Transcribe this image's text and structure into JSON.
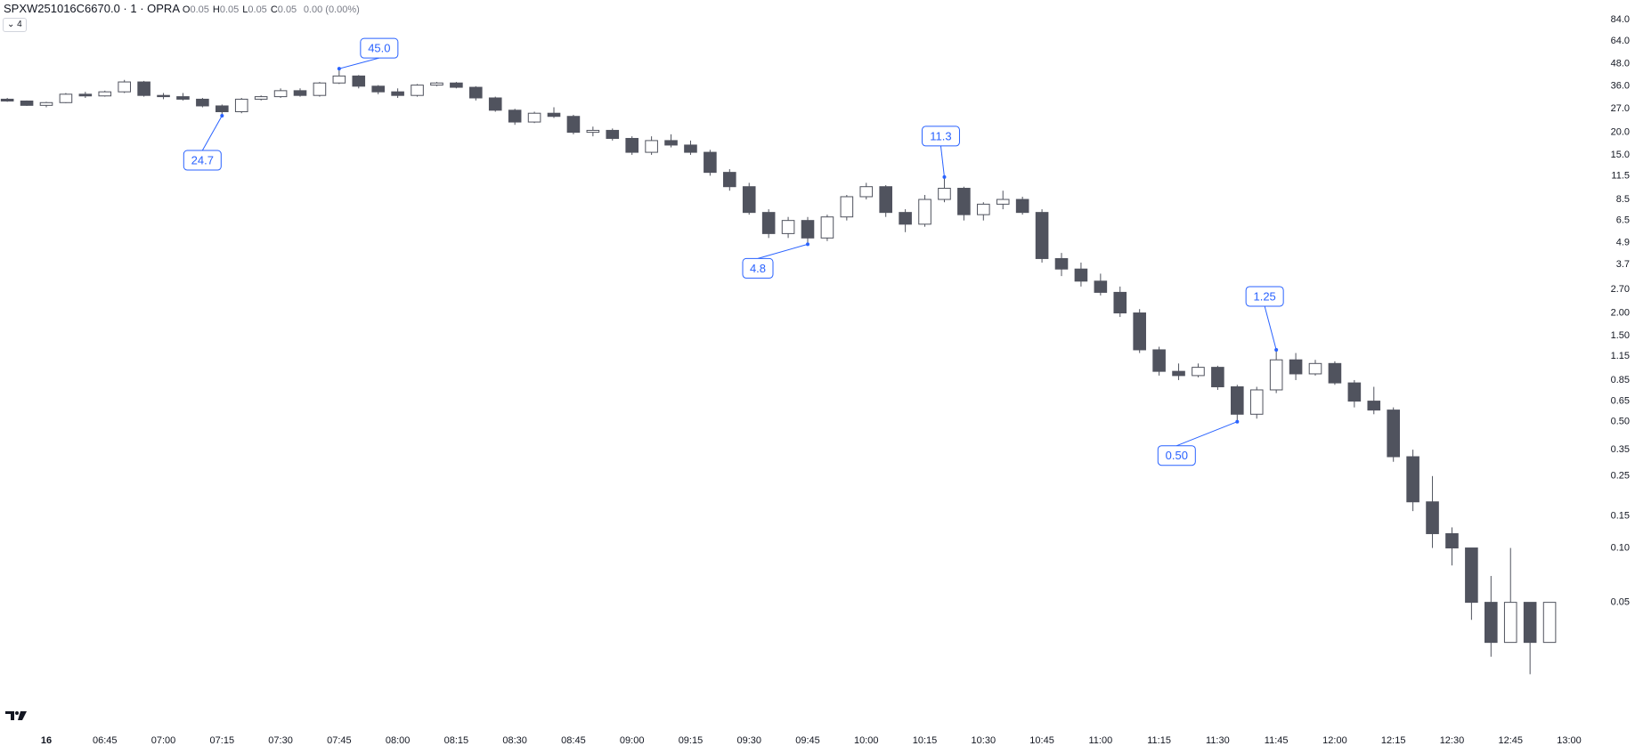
{
  "header": {
    "symbol": "SPXW251016C6670.0 · 1 · OPRA",
    "ohlc": [
      {
        "key": "O",
        "value": 0.05
      },
      {
        "key": "H",
        "value": 0.05
      },
      {
        "key": "L",
        "value": 0.05
      },
      {
        "key": "C",
        "value": 0.05
      }
    ],
    "change": "0.00 (0.00%)",
    "badge": "4"
  },
  "chart_data": {
    "type": "candlestick",
    "log_scale": true,
    "up_color": "#ffffff",
    "down_color": "#50535e",
    "wick_color": "#50535e",
    "annotation_color": "#2962ff",
    "x": [
      "06:20",
      "06:25",
      "06:30",
      "06:35",
      "06:40",
      "06:45",
      "06:50",
      "06:55",
      "07:00",
      "07:05",
      "07:10",
      "07:15",
      "07:20",
      "07:25",
      "07:30",
      "07:35",
      "07:40",
      "07:45",
      "07:50",
      "07:55",
      "08:00",
      "08:05",
      "08:10",
      "08:15",
      "08:20",
      "08:25",
      "08:30",
      "08:35",
      "08:40",
      "08:45",
      "08:50",
      "08:55",
      "09:00",
      "09:05",
      "09:10",
      "09:15",
      "09:20",
      "09:25",
      "09:30",
      "09:35",
      "09:40",
      "09:45",
      "09:50",
      "09:55",
      "10:00",
      "10:05",
      "10:10",
      "10:15",
      "10:20",
      "10:25",
      "10:30",
      "10:35",
      "10:40",
      "10:45",
      "10:50",
      "10:55",
      "11:00",
      "11:05",
      "11:10",
      "11:15",
      "11:20",
      "11:25",
      "11:30",
      "11:35",
      "11:40",
      "11:45",
      "11:50",
      "11:55",
      "12:00",
      "12:05",
      "12:10",
      "12:15",
      "12:20",
      "12:25",
      "12:30",
      "12:35",
      "12:40",
      "12:45",
      "12:50",
      "12:55"
    ],
    "open": [
      30.5,
      29.8,
      28.2,
      29.2,
      32.5,
      31.8,
      33.5,
      38,
      32,
      31.5,
      30.5,
      28,
      26,
      30.5,
      31.5,
      34,
      32,
      37.5,
      41,
      36,
      33.5,
      32,
      36.5,
      37.5,
      35.5,
      31,
      26.5,
      22.8,
      25.5,
      24.5,
      20,
      20.5,
      18.5,
      15.5,
      18,
      17,
      15.5,
      12,
      10,
      7.2,
      5.5,
      6.5,
      5.2,
      6.8,
      8.8,
      10,
      7.2,
      6.2,
      8.5,
      9.8,
      7,
      8,
      8.5,
      7.2,
      4,
      3.5,
      3,
      2.6,
      2,
      1.25,
      0.95,
      0.9,
      1.0,
      0.78,
      0.55,
      0.75,
      1.1,
      0.92,
      1.05,
      0.82,
      0.65,
      0.58,
      0.32,
      0.18,
      0.12,
      0.1,
      0.05,
      0.03,
      0.05,
      0.03
    ],
    "high": [
      31,
      30,
      29.5,
      33,
      33.5,
      34,
      39,
      38.5,
      33,
      33,
      31,
      28.5,
      31,
      32,
      35,
      35,
      38,
      45,
      41.5,
      36.5,
      35,
      37,
      38,
      38,
      36,
      31.5,
      27,
      26,
      27.5,
      25,
      21.5,
      21,
      19,
      19,
      19.5,
      18,
      16,
      12.5,
      10.5,
      7.5,
      6.8,
      6.8,
      7,
      9,
      10.5,
      10.2,
      7.5,
      9,
      11.3,
      10,
      8.2,
      9.5,
      8.8,
      7.5,
      4.3,
      3.8,
      3.3,
      2.8,
      2.1,
      1.3,
      1.05,
      1.05,
      1.02,
      0.8,
      0.78,
      1.25,
      1.2,
      1.1,
      1.08,
      0.85,
      0.78,
      0.6,
      0.35,
      0.25,
      0.13,
      0.1,
      0.07,
      0.1,
      0.05,
      0.05
    ],
    "low": [
      29.5,
      28,
      27.5,
      29,
      31,
      31.5,
      33,
      31.5,
      30.5,
      30,
      27.5,
      24.7,
      25.5,
      30,
      31,
      31.5,
      31.5,
      37,
      35,
      32.5,
      31,
      31.5,
      36,
      35,
      30,
      26,
      22,
      22.5,
      24,
      19.5,
      19,
      18,
      15,
      15,
      16.5,
      15,
      11.5,
      9.5,
      7,
      5.2,
      5.2,
      4.8,
      5,
      6.5,
      8.5,
      6.8,
      5.6,
      6,
      8.2,
      6.5,
      6.5,
      7.5,
      7,
      3.8,
      3.2,
      2.8,
      2.5,
      1.9,
      1.2,
      0.9,
      0.85,
      0.88,
      0.75,
      0.5,
      0.52,
      0.72,
      0.85,
      0.9,
      0.8,
      0.6,
      0.55,
      0.3,
      0.16,
      0.1,
      0.08,
      0.04,
      0.025,
      0.03,
      0.02,
      0.03
    ],
    "close": [
      29.8,
      28.2,
      29.2,
      32.5,
      31.8,
      33.5,
      38,
      32,
      31.5,
      30.5,
      28,
      26,
      30.5,
      31.5,
      34,
      32,
      37.5,
      41,
      36,
      33.5,
      32,
      36.5,
      37.5,
      35.5,
      31,
      26.5,
      22.8,
      25.5,
      24.5,
      20,
      20.5,
      18.5,
      15.5,
      18,
      17,
      15.5,
      12,
      10,
      7.2,
      5.5,
      6.5,
      5.2,
      6.8,
      8.8,
      10,
      7.2,
      6.2,
      8.5,
      9.8,
      7,
      8,
      8.5,
      7.2,
      4,
      3.5,
      3,
      2.6,
      2,
      1.25,
      0.95,
      0.9,
      1.0,
      0.78,
      0.55,
      0.75,
      1.1,
      0.92,
      1.05,
      0.82,
      0.65,
      0.58,
      0.32,
      0.18,
      0.12,
      0.1,
      0.05,
      0.03,
      0.05,
      0.03,
      0.05
    ],
    "ylim": [
      0.0104,
      108
    ],
    "yticks": [
      {
        "value": 84,
        "label": "84.0"
      },
      {
        "value": 64,
        "label": "64.0"
      },
      {
        "value": 48,
        "label": "48.0"
      },
      {
        "value": 36,
        "label": "36.0"
      },
      {
        "value": 27,
        "label": "27.0"
      },
      {
        "value": 20,
        "label": "20.0"
      },
      {
        "value": 15,
        "label": "15.0"
      },
      11.5,
      8.5,
      6.5,
      4.9,
      3.7,
      {
        "value": 2.7,
        "label": "2.70"
      },
      {
        "value": 2,
        "label": "2.00"
      },
      {
        "value": 1.5,
        "label": "1.50"
      },
      1.15,
      0.85,
      0.65,
      {
        "value": 0.5,
        "label": "0.50"
      },
      0.35,
      0.25,
      0.15,
      {
        "value": 0.1,
        "label": "0.10"
      },
      0.05
    ],
    "xlim": [
      "06:30",
      "13:00"
    ],
    "xticks": [
      {
        "value": "06:30",
        "label": "16"
      },
      "06:45",
      "07:00",
      "07:15",
      "07:30",
      "07:45",
      "08:00",
      "08:15",
      "08:30",
      "08:45",
      "09:00",
      "09:15",
      "09:30",
      "09:45",
      "10:00",
      "10:15",
      "10:30",
      "10:45",
      "11:00",
      "11:15",
      "11:30",
      "11:45",
      "12:00",
      "12:15",
      "12:30",
      "12:45",
      "13:00"
    ],
    "annotations": [
      {
        "x": "07:45",
        "value": 45,
        "label": "45.0"
      },
      {
        "x": "07:15",
        "value": 24.7,
        "label": "24.7"
      },
      {
        "x": "10:20",
        "value": 11.3,
        "label": "11.3"
      },
      {
        "x": "09:45",
        "value": 4.8,
        "label": "4.8"
      },
      {
        "x": "11:45",
        "value": 1.25,
        "label": "1.25"
      },
      {
        "x": "11:35",
        "value": 0.5,
        "label": "0.50"
      }
    ]
  }
}
